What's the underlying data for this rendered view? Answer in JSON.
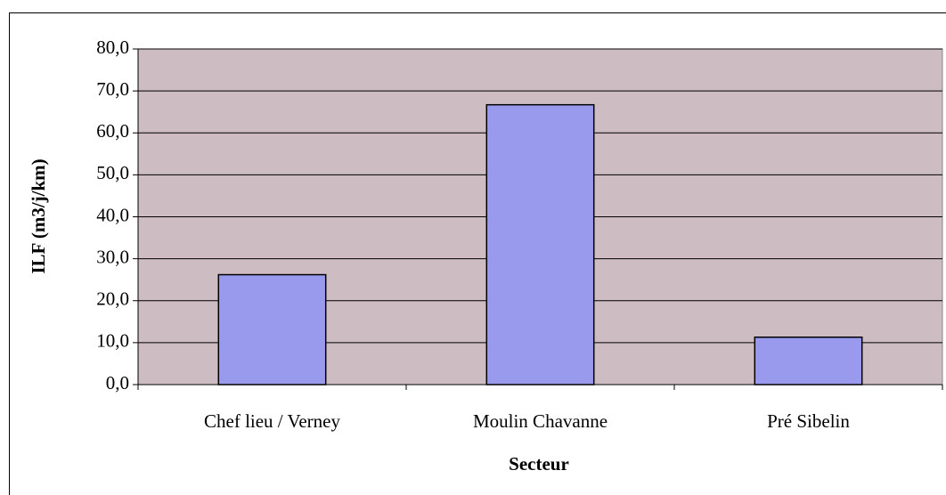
{
  "chart_data": {
    "type": "bar",
    "categories": [
      "Chef lieu / Verney",
      "Moulin Chavanne",
      "Pré Sibelin"
    ],
    "values": [
      26.2,
      66.7,
      11.3
    ],
    "color": "#9999ee",
    "xlabel": "Secteur",
    "ylabel": "ILF (m3/j/km)",
    "ylim": [
      0,
      80
    ],
    "yticks": [
      {
        "value": 0,
        "label": "0,0"
      },
      {
        "value": 10,
        "label": "10,0"
      },
      {
        "value": 20,
        "label": "20,0"
      },
      {
        "value": 30,
        "label": "30,0"
      },
      {
        "value": 40,
        "label": "40,0"
      },
      {
        "value": 50,
        "label": "50,0"
      },
      {
        "value": 60,
        "label": "60,0"
      },
      {
        "value": 70,
        "label": "70,0"
      },
      {
        "value": 80,
        "label": "80,0"
      }
    ],
    "grid": true
  }
}
